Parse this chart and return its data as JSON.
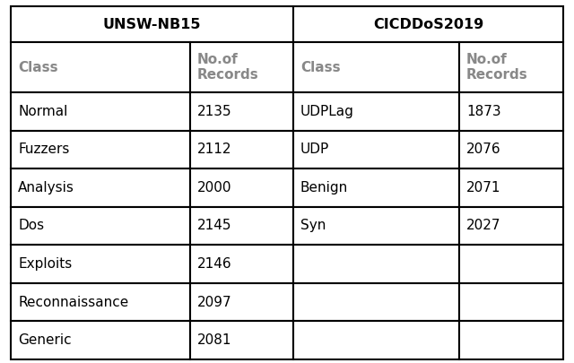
{
  "title_left": "UNSW-NB15",
  "title_right": "CICDDoS2019",
  "header_cols": [
    "Class",
    "No.of\nRecords",
    "Class",
    "No.of\nRecords"
  ],
  "rows_left": [
    [
      "Normal",
      "2135"
    ],
    [
      "Fuzzers",
      "2112"
    ],
    [
      "Analysis",
      "2000"
    ],
    [
      "Dos",
      "2145"
    ],
    [
      "Exploits",
      "2146"
    ],
    [
      "Reconnaissance",
      "2097"
    ],
    [
      "Generic",
      "2081"
    ]
  ],
  "rows_right": [
    [
      "UDPLag",
      "1873"
    ],
    [
      "UDP",
      "2076"
    ],
    [
      "Benign",
      "2071"
    ],
    [
      "Syn",
      "2027"
    ],
    [
      "",
      ""
    ],
    [
      "",
      ""
    ],
    [
      "",
      ""
    ]
  ],
  "title_color": "#000000",
  "header_text_color": "#888888",
  "data_text_color": "#000000",
  "border_color": "#000000",
  "bg_color": "#ffffff",
  "title_fontsize": 11.5,
  "header_fontsize": 11,
  "data_fontsize": 11
}
